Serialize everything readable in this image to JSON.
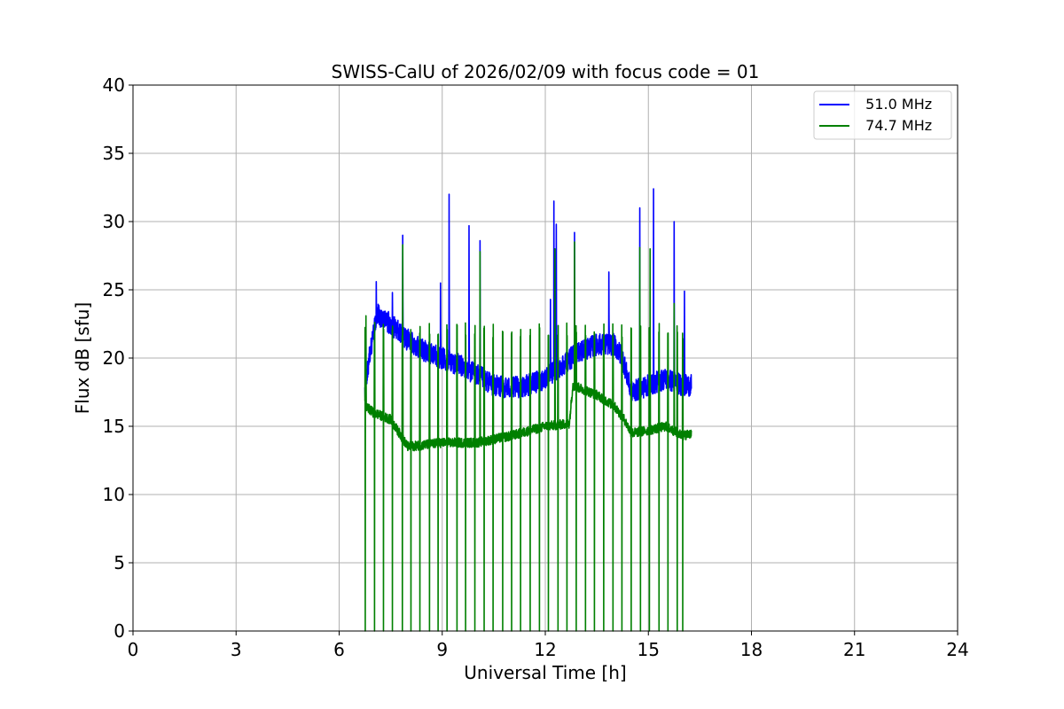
{
  "chart_data": {
    "type": "line",
    "title": "SWISS-CalU of 2026/02/09 with focus code = 01",
    "xlabel": "Universal Time [h]",
    "ylabel": "Flux dB [sfu]",
    "xlim": [
      0,
      24
    ],
    "ylim": [
      0,
      40
    ],
    "xticks": [
      0,
      3,
      6,
      9,
      12,
      15,
      18,
      21,
      24
    ],
    "yticks": [
      0,
      5,
      10,
      15,
      20,
      25,
      30,
      35,
      40
    ],
    "grid": true,
    "legend_position": "top-right",
    "data_range_hours": [
      6.75,
      16.25
    ],
    "series": [
      {
        "name": "51.0 MHz",
        "legend_label": "  51.0 MHz",
        "color": "#0000ff",
        "baseline": [
          [
            6.75,
            17.5
          ],
          [
            6.9,
            20.5
          ],
          [
            7.1,
            23.2
          ],
          [
            7.5,
            22.5
          ],
          [
            7.9,
            21.5
          ],
          [
            8.5,
            20.5
          ],
          [
            9.0,
            20.0
          ],
          [
            9.5,
            19.5
          ],
          [
            10.0,
            18.8
          ],
          [
            10.5,
            18.0
          ],
          [
            11.0,
            17.8
          ],
          [
            11.5,
            18.0
          ],
          [
            12.0,
            18.5
          ],
          [
            12.5,
            19.5
          ],
          [
            13.0,
            20.5
          ],
          [
            13.5,
            21.0
          ],
          [
            14.0,
            21.0
          ],
          [
            14.25,
            20.0
          ],
          [
            14.5,
            17.5
          ],
          [
            15.0,
            18.0
          ],
          [
            15.5,
            18.5
          ],
          [
            16.0,
            18.0
          ],
          [
            16.25,
            18.0
          ]
        ],
        "peaks": [
          [
            7.08,
            25.6
          ],
          [
            7.55,
            24.8
          ],
          [
            7.85,
            29.0
          ],
          [
            8.95,
            25.5
          ],
          [
            9.2,
            32.0
          ],
          [
            9.78,
            29.7
          ],
          [
            10.1,
            28.6
          ],
          [
            12.15,
            24.3
          ],
          [
            12.25,
            31.5
          ],
          [
            12.32,
            29.8
          ],
          [
            12.85,
            29.2
          ],
          [
            13.85,
            26.3
          ],
          [
            14.75,
            31.0
          ],
          [
            15.15,
            32.4
          ],
          [
            15.75,
            30.0
          ],
          [
            16.05,
            24.9
          ]
        ]
      },
      {
        "name": "74.7 MHz",
        "legend_label": "  74.7 MHz",
        "color": "#008000",
        "baseline": [
          [
            6.75,
            16.5
          ],
          [
            7.0,
            16.0
          ],
          [
            7.5,
            15.5
          ],
          [
            7.75,
            14.5
          ],
          [
            8.0,
            13.5
          ],
          [
            9.0,
            13.8
          ],
          [
            10.0,
            13.8
          ],
          [
            11.0,
            14.3
          ],
          [
            12.0,
            15.0
          ],
          [
            12.7,
            15.2
          ],
          [
            12.8,
            18.0
          ],
          [
            13.5,
            17.3
          ],
          [
            14.0,
            16.5
          ],
          [
            14.3,
            15.5
          ],
          [
            14.5,
            14.5
          ],
          [
            15.0,
            14.7
          ],
          [
            15.5,
            15.0
          ],
          [
            16.0,
            14.3
          ],
          [
            16.25,
            14.5
          ]
        ],
        "peaks": [
          [
            6.78,
            23.1
          ],
          [
            7.85,
            28.3
          ],
          [
            10.1,
            27.8
          ],
          [
            12.28,
            28.0
          ],
          [
            12.85,
            28.5
          ],
          [
            14.75,
            28.1
          ],
          [
            15.05,
            28.0
          ],
          [
            15.75,
            24.0
          ]
        ],
        "calibration_drops": [
          6.76,
          7.03,
          7.29,
          7.55,
          7.84,
          8.09,
          8.35,
          8.63,
          8.88,
          9.14,
          9.43,
          9.68,
          9.95,
          10.22,
          10.48,
          10.76,
          11.02,
          11.28,
          11.56,
          11.83,
          12.09,
          12.37,
          12.63,
          12.9,
          13.17,
          13.43,
          13.7,
          13.97,
          14.23,
          14.5,
          14.77,
          15.03,
          15.31,
          15.57,
          15.84,
          16.0
        ],
        "drop_spike_value": 22.0
      }
    ]
  }
}
